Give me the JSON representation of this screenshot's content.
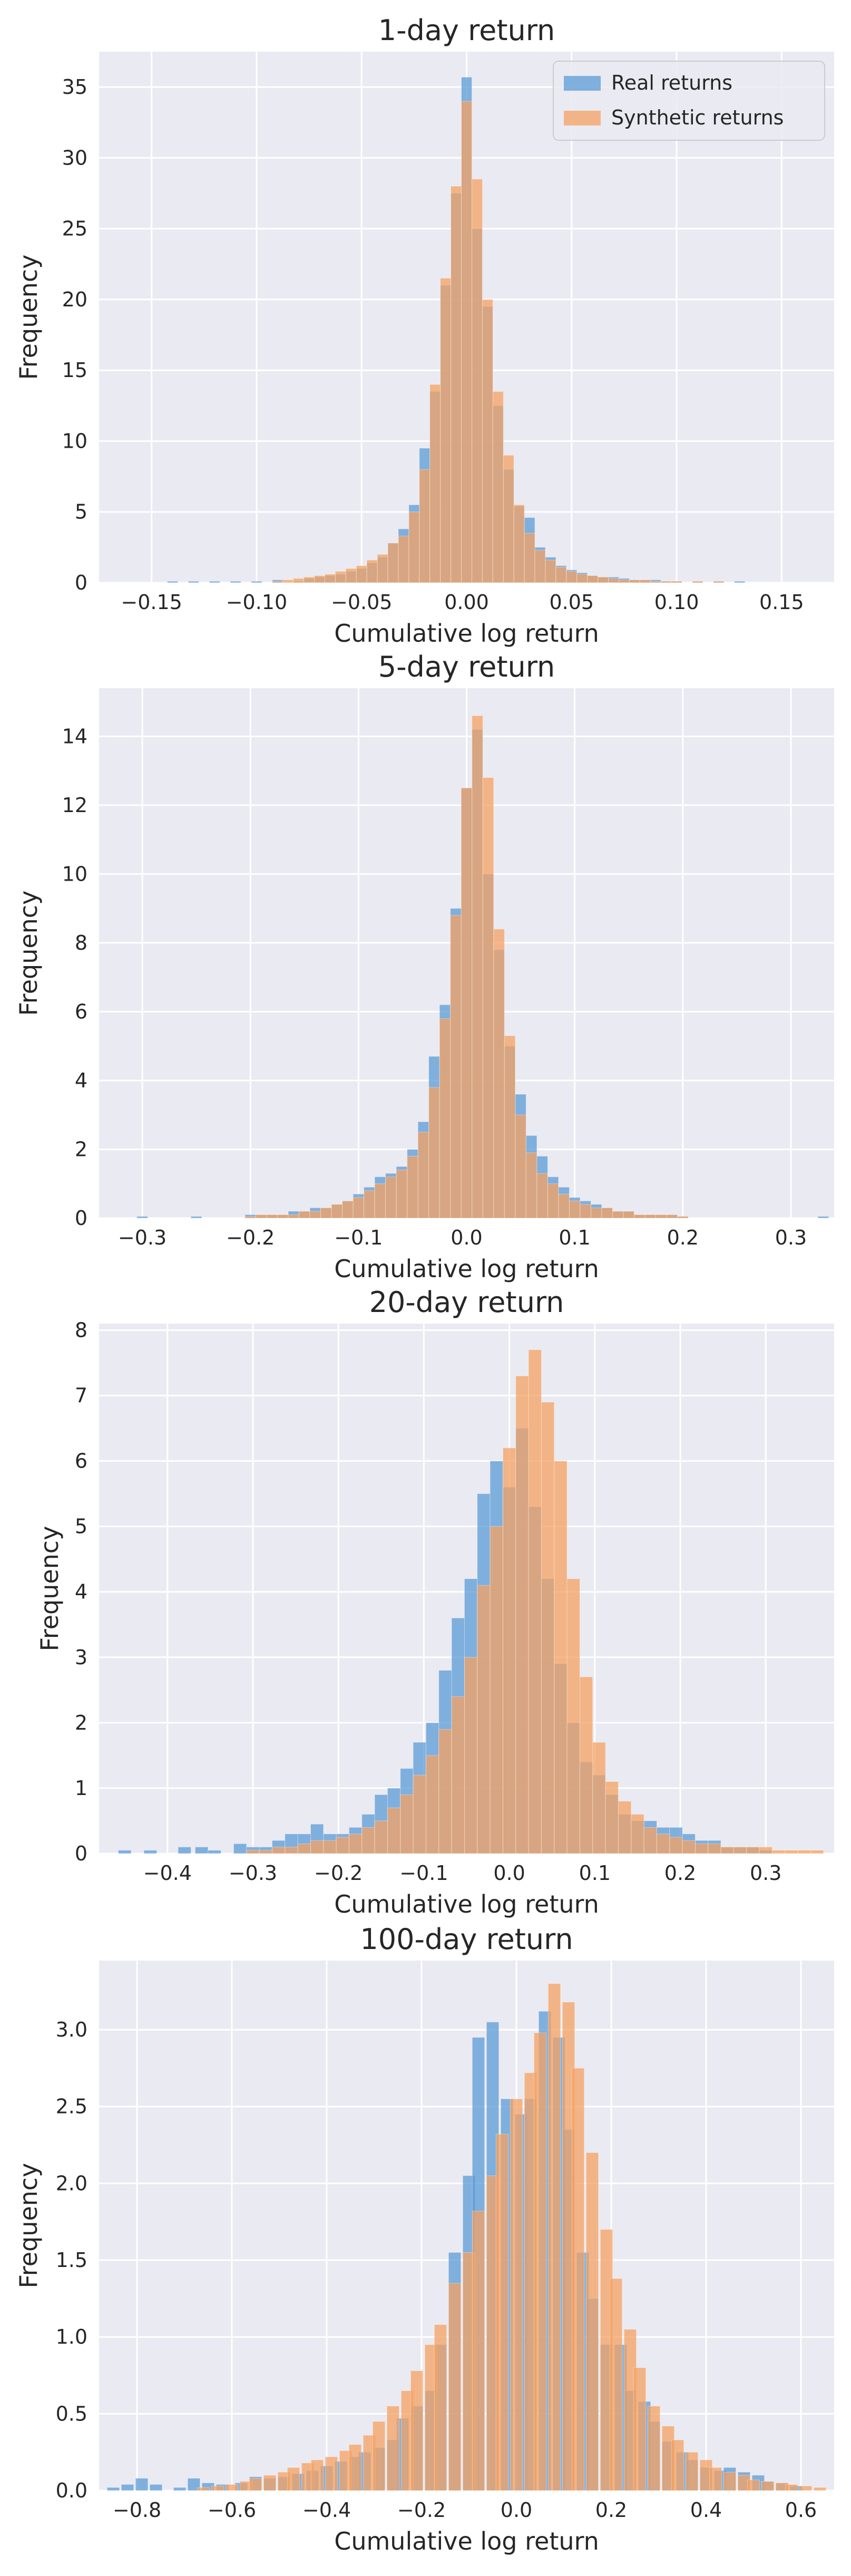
{
  "colors": {
    "real": "#5b9bd5",
    "synthetic": "#f4a261",
    "plot_background": "#eaeaf2",
    "grid": "#ffffff"
  },
  "legend": {
    "placement": "top-right",
    "entries": [
      "Real returns",
      "Synthetic returns"
    ]
  },
  "chart_data": [
    {
      "type": "bar",
      "title": "1-day return",
      "xlabel": "Cumulative log return",
      "ylabel": "Frequency",
      "xlim": [
        -0.175,
        0.175
      ],
      "ylim": [
        0,
        37.5
      ],
      "xticks": [
        -0.15,
        -0.1,
        -0.05,
        0.0,
        0.05,
        0.1,
        0.15
      ],
      "xtick_labels": [
        "−0.15",
        "−0.10",
        "−0.05",
        "0.00",
        "0.05",
        "0.10",
        "0.15"
      ],
      "yticks": [
        0,
        5,
        10,
        15,
        20,
        25,
        30,
        35
      ],
      "ytick_labels": [
        "0",
        "5",
        "10",
        "15",
        "20",
        "25",
        "30",
        "35"
      ],
      "grid": true,
      "show_legend": true,
      "bin_width": 0.005,
      "series": [
        {
          "name": "Real returns",
          "x": [
            -0.14,
            -0.13,
            -0.12,
            -0.11,
            -0.1,
            -0.09,
            -0.08,
            -0.075,
            -0.07,
            -0.065,
            -0.06,
            -0.055,
            -0.05,
            -0.045,
            -0.04,
            -0.035,
            -0.03,
            -0.025,
            -0.02,
            -0.015,
            -0.01,
            -0.005,
            0.0,
            0.005,
            0.01,
            0.015,
            0.02,
            0.025,
            0.03,
            0.035,
            0.04,
            0.045,
            0.05,
            0.055,
            0.06,
            0.065,
            0.07,
            0.075,
            0.08,
            0.085,
            0.09,
            0.095,
            0.1,
            0.11,
            0.12,
            0.13
          ],
          "y": [
            0.1,
            0.1,
            0.1,
            0.1,
            0.1,
            0.2,
            0.1,
            0.3,
            0.4,
            0.5,
            0.6,
            0.8,
            1.0,
            1.4,
            1.8,
            2.8,
            3.8,
            5.5,
            9.5,
            13.5,
            21.0,
            27.5,
            35.7,
            25.0,
            19.5,
            12.5,
            8.0,
            5.4,
            4.6,
            2.5,
            1.8,
            1.2,
            0.9,
            0.7,
            0.5,
            0.4,
            0.4,
            0.3,
            0.2,
            0.2,
            0.2,
            0.1,
            0.1,
            0.1,
            0.1,
            0.1
          ]
        },
        {
          "name": "Synthetic returns",
          "x": [
            -0.09,
            -0.085,
            -0.08,
            -0.075,
            -0.07,
            -0.065,
            -0.06,
            -0.055,
            -0.05,
            -0.045,
            -0.04,
            -0.035,
            -0.03,
            -0.025,
            -0.02,
            -0.015,
            -0.01,
            -0.005,
            0.0,
            0.005,
            0.01,
            0.015,
            0.02,
            0.025,
            0.03,
            0.035,
            0.04,
            0.045,
            0.05,
            0.055,
            0.06,
            0.065,
            0.07,
            0.075,
            0.08,
            0.085,
            0.09,
            0.095,
            0.1,
            0.11,
            0.12
          ],
          "y": [
            0.1,
            0.2,
            0.3,
            0.4,
            0.5,
            0.6,
            0.8,
            1.0,
            1.2,
            1.6,
            2.0,
            2.8,
            3.3,
            5.0,
            8.0,
            14.0,
            21.5,
            28.0,
            34.0,
            28.5,
            20.0,
            13.5,
            9.0,
            5.5,
            3.5,
            2.3,
            1.6,
            1.1,
            0.8,
            0.6,
            0.5,
            0.4,
            0.3,
            0.2,
            0.2,
            0.2,
            0.1,
            0.1,
            0.1,
            0.1,
            0.1
          ]
        }
      ]
    },
    {
      "type": "bar",
      "title": "5-day return",
      "xlabel": "Cumulative log return",
      "ylabel": "Frequency",
      "xlim": [
        -0.34,
        0.34
      ],
      "ylim": [
        0,
        15.4
      ],
      "xticks": [
        -0.3,
        -0.2,
        -0.1,
        0.0,
        0.1,
        0.2,
        0.3
      ],
      "xtick_labels": [
        "−0.3",
        "−0.2",
        "−0.1",
        "0.0",
        "0.1",
        "0.2",
        "0.3"
      ],
      "yticks": [
        0,
        2,
        4,
        6,
        8,
        10,
        12,
        14
      ],
      "ytick_labels": [
        "0",
        "2",
        "4",
        "6",
        "8",
        "10",
        "12",
        "14"
      ],
      "grid": true,
      "show_legend": false,
      "bin_width": 0.01,
      "series": [
        {
          "name": "Real returns",
          "x": [
            -0.3,
            -0.25,
            -0.2,
            -0.19,
            -0.18,
            -0.17,
            -0.16,
            -0.15,
            -0.14,
            -0.13,
            -0.12,
            -0.11,
            -0.1,
            -0.09,
            -0.08,
            -0.07,
            -0.06,
            -0.05,
            -0.04,
            -0.03,
            -0.02,
            -0.01,
            0.0,
            0.01,
            0.02,
            0.03,
            0.04,
            0.05,
            0.06,
            0.07,
            0.08,
            0.09,
            0.1,
            0.11,
            0.12,
            0.13,
            0.14,
            0.15,
            0.16,
            0.17,
            0.18,
            0.19,
            0.2,
            0.33
          ],
          "y": [
            0.05,
            0.05,
            0.1,
            0.1,
            0.1,
            0.1,
            0.2,
            0.2,
            0.3,
            0.3,
            0.4,
            0.5,
            0.7,
            0.9,
            1.2,
            1.3,
            1.5,
            2.0,
            2.8,
            4.7,
            6.2,
            9.0,
            12.5,
            14.2,
            10.0,
            7.8,
            5.0,
            3.6,
            2.4,
            1.8,
            1.2,
            0.9,
            0.6,
            0.5,
            0.4,
            0.3,
            0.2,
            0.2,
            0.1,
            0.1,
            0.1,
            0.1,
            0.05,
            0.05
          ]
        },
        {
          "name": "Synthetic returns",
          "x": [
            -0.2,
            -0.19,
            -0.18,
            -0.17,
            -0.16,
            -0.15,
            -0.14,
            -0.13,
            -0.12,
            -0.11,
            -0.1,
            -0.09,
            -0.08,
            -0.07,
            -0.06,
            -0.05,
            -0.04,
            -0.03,
            -0.02,
            -0.01,
            0.0,
            0.01,
            0.02,
            0.03,
            0.04,
            0.05,
            0.06,
            0.07,
            0.08,
            0.09,
            0.1,
            0.11,
            0.12,
            0.13,
            0.14,
            0.15,
            0.16,
            0.17,
            0.18,
            0.19,
            0.2
          ],
          "y": [
            0.05,
            0.1,
            0.1,
            0.1,
            0.1,
            0.2,
            0.2,
            0.3,
            0.4,
            0.5,
            0.6,
            0.8,
            1.0,
            1.2,
            1.4,
            1.8,
            2.5,
            3.8,
            5.8,
            8.8,
            12.5,
            14.6,
            12.8,
            8.4,
            5.3,
            3.0,
            1.9,
            1.3,
            1.0,
            0.7,
            0.5,
            0.4,
            0.3,
            0.3,
            0.2,
            0.2,
            0.1,
            0.1,
            0.1,
            0.1,
            0.05
          ]
        }
      ]
    },
    {
      "type": "bar",
      "title": "20-day return",
      "xlabel": "Cumulative log return",
      "ylabel": "Frequency",
      "xlim": [
        -0.48,
        0.38
      ],
      "ylim": [
        0,
        8.1
      ],
      "xticks": [
        -0.4,
        -0.3,
        -0.2,
        -0.1,
        0.0,
        0.1,
        0.2,
        0.3
      ],
      "xtick_labels": [
        "−0.4",
        "−0.3",
        "−0.2",
        "−0.1",
        "0.0",
        "0.1",
        "0.2",
        "0.3"
      ],
      "yticks": [
        0,
        1,
        2,
        3,
        4,
        5,
        6,
        7,
        8
      ],
      "ytick_labels": [
        "0",
        "1",
        "2",
        "3",
        "4",
        "5",
        "6",
        "7",
        "8"
      ],
      "grid": true,
      "show_legend": false,
      "bin_width": 0.015,
      "series": [
        {
          "name": "Real returns",
          "x": [
            -0.45,
            -0.42,
            -0.38,
            -0.36,
            -0.345,
            -0.315,
            -0.3,
            -0.285,
            -0.27,
            -0.255,
            -0.24,
            -0.225,
            -0.21,
            -0.195,
            -0.18,
            -0.165,
            -0.15,
            -0.135,
            -0.12,
            -0.105,
            -0.09,
            -0.075,
            -0.06,
            -0.045,
            -0.03,
            -0.015,
            0.0,
            0.015,
            0.03,
            0.045,
            0.06,
            0.075,
            0.09,
            0.105,
            0.12,
            0.135,
            0.15,
            0.165,
            0.18,
            0.195,
            0.21,
            0.225,
            0.24,
            0.255,
            0.27,
            0.285,
            0.3
          ],
          "y": [
            0.05,
            0.05,
            0.1,
            0.1,
            0.05,
            0.15,
            0.1,
            0.1,
            0.2,
            0.3,
            0.3,
            0.45,
            0.3,
            0.3,
            0.4,
            0.6,
            0.9,
            1.0,
            1.3,
            1.7,
            2.0,
            2.8,
            3.6,
            4.2,
            5.5,
            6.0,
            5.6,
            6.5,
            5.3,
            4.2,
            2.9,
            2.0,
            1.4,
            1.2,
            0.9,
            0.6,
            0.5,
            0.5,
            0.4,
            0.4,
            0.3,
            0.2,
            0.2,
            0.1,
            0.1,
            0.1,
            0.05
          ]
        },
        {
          "name": "Synthetic returns",
          "x": [
            -0.3,
            -0.285,
            -0.27,
            -0.255,
            -0.24,
            -0.225,
            -0.21,
            -0.195,
            -0.18,
            -0.165,
            -0.15,
            -0.135,
            -0.12,
            -0.105,
            -0.09,
            -0.075,
            -0.06,
            -0.045,
            -0.03,
            -0.015,
            0.0,
            0.015,
            0.03,
            0.045,
            0.06,
            0.075,
            0.09,
            0.105,
            0.12,
            0.135,
            0.15,
            0.165,
            0.18,
            0.195,
            0.21,
            0.225,
            0.24,
            0.255,
            0.27,
            0.285,
            0.3,
            0.315,
            0.33,
            0.345,
            0.36
          ],
          "y": [
            0.05,
            0.05,
            0.1,
            0.1,
            0.15,
            0.2,
            0.2,
            0.25,
            0.3,
            0.4,
            0.5,
            0.7,
            0.9,
            1.2,
            1.5,
            1.9,
            2.4,
            3.0,
            4.1,
            5.0,
            6.2,
            7.3,
            7.7,
            6.9,
            6.0,
            4.2,
            2.7,
            1.7,
            1.1,
            0.8,
            0.6,
            0.4,
            0.3,
            0.25,
            0.2,
            0.15,
            0.15,
            0.1,
            0.1,
            0.1,
            0.1,
            0.05,
            0.05,
            0.05,
            0.05
          ]
        }
      ]
    },
    {
      "type": "bar",
      "title": "100-day return",
      "xlabel": "Cumulative log return",
      "ylabel": "Frequency",
      "xlim": [
        -0.88,
        0.67
      ],
      "ylim": [
        0,
        3.45
      ],
      "xticks": [
        -0.8,
        -0.6,
        -0.4,
        -0.2,
        0.0,
        0.2,
        0.4,
        0.6
      ],
      "xtick_labels": [
        "−0.8",
        "−0.6",
        "−0.4",
        "−0.2",
        "0.0",
        "0.2",
        "0.4",
        "0.6"
      ],
      "yticks": [
        0.0,
        0.5,
        1.0,
        1.5,
        2.0,
        2.5,
        3.0
      ],
      "ytick_labels": [
        "0.0",
        "0.5",
        "1.0",
        "1.5",
        "2.0",
        "2.5",
        "3.0"
      ],
      "grid": true,
      "show_legend": false,
      "bin_width": 0.026,
      "series": [
        {
          "name": "Real returns",
          "x": [
            -0.85,
            -0.82,
            -0.79,
            -0.76,
            -0.71,
            -0.68,
            -0.65,
            -0.62,
            -0.58,
            -0.55,
            -0.52,
            -0.49,
            -0.46,
            -0.43,
            -0.4,
            -0.37,
            -0.34,
            -0.32,
            -0.29,
            -0.26,
            -0.24,
            -0.21,
            -0.18,
            -0.16,
            -0.13,
            -0.1,
            -0.08,
            -0.05,
            -0.02,
            0.01,
            0.03,
            0.06,
            0.09,
            0.11,
            0.14,
            0.16,
            0.19,
            0.22,
            0.24,
            0.27,
            0.29,
            0.32,
            0.35,
            0.37,
            0.4,
            0.43,
            0.45,
            0.48,
            0.51,
            0.53,
            0.56,
            0.59
          ],
          "y": [
            0.02,
            0.04,
            0.08,
            0.04,
            0.02,
            0.08,
            0.05,
            0.04,
            0.05,
            0.09,
            0.08,
            0.09,
            0.11,
            0.13,
            0.16,
            0.19,
            0.22,
            0.25,
            0.28,
            0.33,
            0.47,
            0.55,
            0.65,
            0.95,
            1.55,
            2.05,
            2.95,
            3.05,
            2.55,
            2.45,
            2.55,
            3.12,
            2.95,
            2.35,
            1.55,
            1.25,
            0.95,
            0.95,
            0.65,
            0.58,
            0.45,
            0.32,
            0.25,
            0.2,
            0.15,
            0.13,
            0.15,
            0.12,
            0.1,
            0.06,
            0.05,
            0.03
          ]
        },
        {
          "name": "Synthetic returns",
          "x": [
            -0.66,
            -0.63,
            -0.6,
            -0.57,
            -0.55,
            -0.52,
            -0.49,
            -0.47,
            -0.44,
            -0.42,
            -0.39,
            -0.36,
            -0.34,
            -0.31,
            -0.29,
            -0.26,
            -0.23,
            -0.21,
            -0.18,
            -0.16,
            -0.13,
            -0.1,
            -0.08,
            -0.05,
            -0.03,
            0.0,
            0.03,
            0.05,
            0.08,
            0.11,
            0.13,
            0.16,
            0.19,
            0.21,
            0.24,
            0.26,
            0.29,
            0.32,
            0.34,
            0.37,
            0.4,
            0.42,
            0.45,
            0.48,
            0.5,
            0.53,
            0.56,
            0.58,
            0.61,
            0.64
          ],
          "y": [
            0.02,
            0.03,
            0.04,
            0.06,
            0.08,
            0.1,
            0.12,
            0.15,
            0.18,
            0.2,
            0.22,
            0.26,
            0.3,
            0.36,
            0.45,
            0.55,
            0.65,
            0.78,
            0.95,
            1.08,
            1.35,
            1.55,
            1.82,
            2.05,
            2.32,
            2.55,
            2.72,
            2.98,
            3.3,
            3.18,
            2.75,
            2.2,
            1.7,
            1.38,
            1.05,
            0.8,
            0.55,
            0.42,
            0.33,
            0.25,
            0.2,
            0.15,
            0.12,
            0.1,
            0.07,
            0.06,
            0.05,
            0.04,
            0.03,
            0.02
          ]
        }
      ]
    }
  ]
}
